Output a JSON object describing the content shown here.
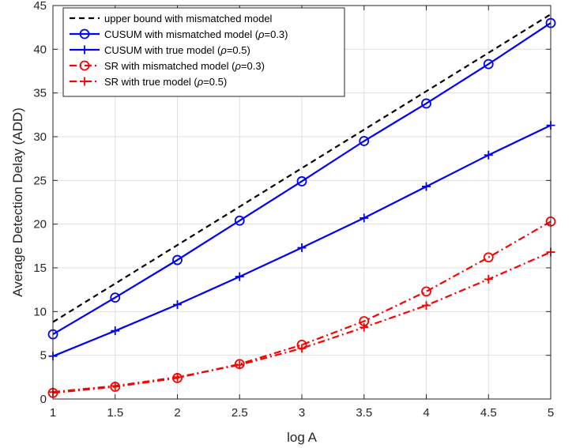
{
  "chart_data": {
    "type": "line",
    "xlabel": "log A",
    "ylabel": "Average Detection Delay (ADD)",
    "xlim": [
      1,
      5
    ],
    "ylim": [
      0,
      45
    ],
    "xticks": [
      "1",
      "1.5",
      "2",
      "2.5",
      "3",
      "3.5",
      "4",
      "4.5",
      "5"
    ],
    "yticks": [
      "0",
      "5",
      "10",
      "15",
      "20",
      "25",
      "30",
      "35",
      "40",
      "45"
    ],
    "grid": true,
    "legend_position": "top-left",
    "x": [
      1,
      1.5,
      2,
      2.5,
      3,
      3.5,
      4,
      4.5,
      5
    ],
    "series": [
      {
        "name": "upper bound with mismatched model",
        "legend_prefix": "upper bound with mismatched model",
        "legend_rho": "",
        "legend_suffix": "",
        "color": "#000000",
        "dash": "dashed",
        "marker": "none",
        "values": [
          8.8,
          13.2,
          17.6,
          22.0,
          26.4,
          30.8,
          35.2,
          39.6,
          44.0
        ]
      },
      {
        "name": "CUSUM with mismatched model (ρ=0.3)",
        "legend_prefix": "CUSUM with mismatched model (",
        "legend_rho": "ρ",
        "legend_suffix": "=0.3)",
        "color": "#0000ff",
        "dash": "solid",
        "marker": "circle",
        "values": [
          7.4,
          11.6,
          15.9,
          20.4,
          24.9,
          29.5,
          33.8,
          38.3,
          43.0
        ]
      },
      {
        "name": "CUSUM with true model (ρ=0.5)",
        "legend_prefix": "CUSUM with true model (",
        "legend_rho": "ρ",
        "legend_suffix": "=0.5)",
        "color": "#0000ff",
        "dash": "solid",
        "marker": "plus",
        "values": [
          4.9,
          7.8,
          10.8,
          14.0,
          17.3,
          20.7,
          24.3,
          27.9,
          31.3
        ]
      },
      {
        "name": "SR with mismatched model (ρ=0.3)",
        "legend_prefix": "SR with mismatched model (",
        "legend_rho": "ρ",
        "legend_suffix": "=0.3)",
        "color": "#ff0000",
        "dash": "dashdot",
        "marker": "circle",
        "values": [
          0.7,
          1.4,
          2.4,
          4.0,
          6.2,
          8.9,
          12.3,
          16.2,
          20.3
        ]
      },
      {
        "name": "SR with true model (ρ=0.5)",
        "legend_prefix": "SR with true model (",
        "legend_rho": "ρ",
        "legend_suffix": "=0.5)",
        "color": "#ff0000",
        "dash": "dashdot",
        "marker": "plus",
        "values": [
          0.8,
          1.5,
          2.5,
          3.9,
          5.8,
          8.2,
          10.7,
          13.7,
          16.8
        ]
      }
    ]
  }
}
